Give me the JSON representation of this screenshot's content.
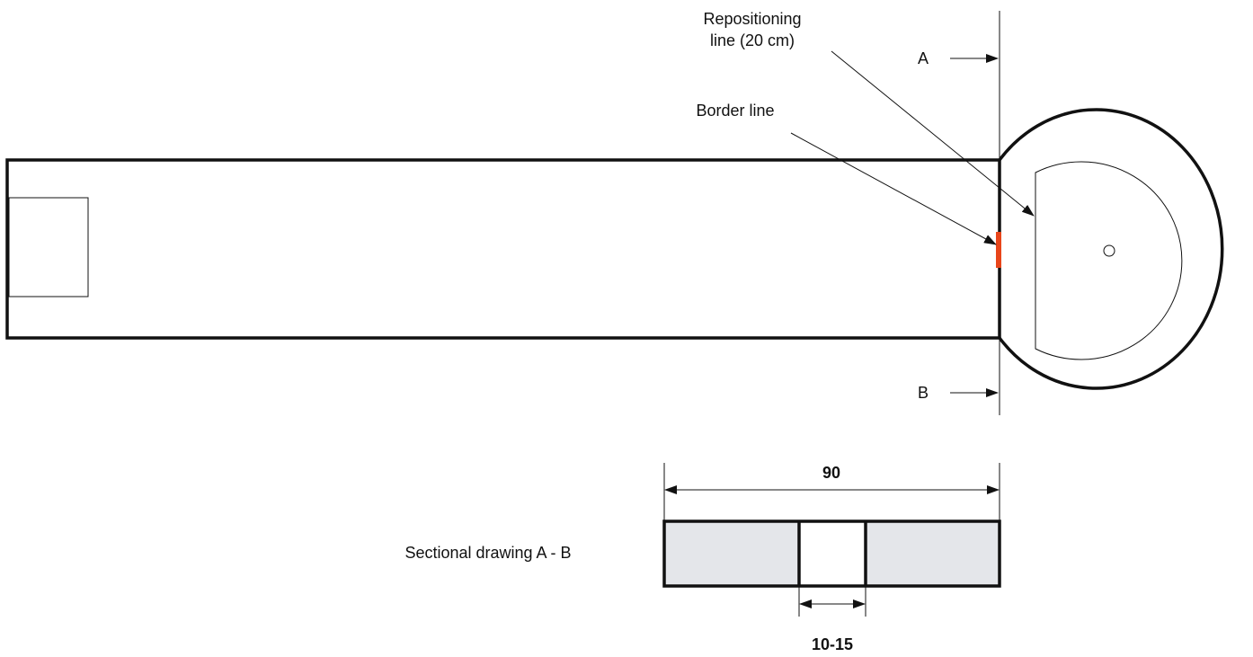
{
  "labels": {
    "repositioning": [
      "Repositioning",
      "line (20 cm)"
    ],
    "border": "Border line",
    "section_a": "A",
    "section_b": "B",
    "width": "90",
    "gap": "10-15",
    "sectional": "Sectional drawing A - B"
  }
}
